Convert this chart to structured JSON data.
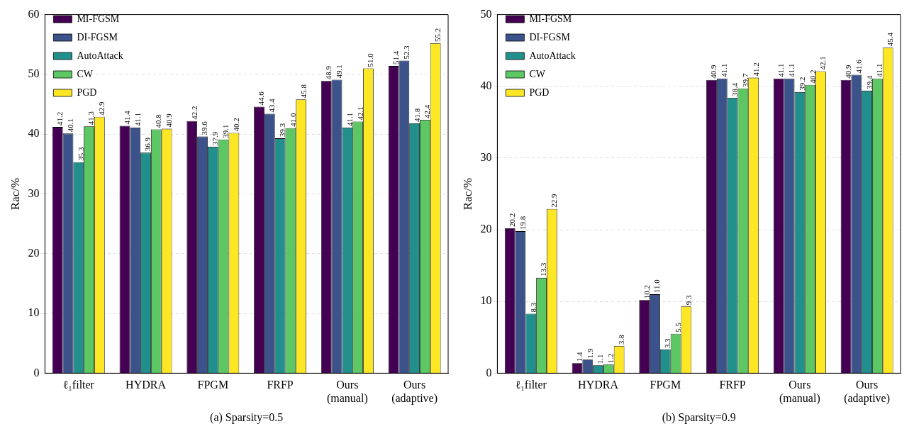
{
  "chart_data": [
    {
      "type": "bar",
      "xlabel": "(a) Sparsity=0.5",
      "ylabel": "Rac/%",
      "categories": [
        "ℓ₁filter",
        "HYDRA",
        "FPGM",
        "FRFP",
        "Ours\n(manual)",
        "Ours\n(adaptive)"
      ],
      "series": [
        {
          "name": "MI-FGSM",
          "color": "#440154",
          "values": [
            41.2,
            41.4,
            42.2,
            44.6,
            48.9,
            51.4
          ],
          "value_labels": [
            "41.2",
            "41.4",
            "42.2",
            "44.6",
            "48.9",
            "51.4"
          ]
        },
        {
          "name": "DI-FGSM",
          "color": "#3b528b",
          "values": [
            40.1,
            41.1,
            39.6,
            43.4,
            49.1,
            52.3
          ],
          "value_labels": [
            "40.1",
            "41.1",
            "39.6",
            "43.4",
            "49.1",
            "52.3"
          ]
        },
        {
          "name": "AutoAttack",
          "color": "#21908d",
          "values": [
            35.3,
            36.9,
            37.9,
            39.3,
            41.1,
            41.8
          ],
          "value_labels": [
            "35.3",
            "36.9",
            "37.9",
            "39.3",
            "41.1",
            "41.8"
          ]
        },
        {
          "name": "CW",
          "color": "#5dc863",
          "values": [
            41.3,
            40.8,
            39.1,
            41.0,
            42.1,
            42.4
          ],
          "value_labels": [
            "41.3",
            "40.8",
            "39.1",
            "41.0",
            "42.1",
            "42.4"
          ]
        },
        {
          "name": "PGD",
          "color": "#fde725",
          "values": [
            42.9,
            40.9,
            40.2,
            45.8,
            51.0,
            55.2
          ],
          "value_labels": [
            "42.9",
            "40.9",
            "40.2",
            "45.8",
            "51.0",
            "55.2"
          ]
        }
      ],
      "ylim": [
        0,
        60
      ],
      "yticks": [
        0,
        10,
        20,
        30,
        40,
        50,
        60
      ],
      "grid": "y",
      "legend": "top left"
    },
    {
      "type": "bar",
      "xlabel": "(b) Sparsity=0.9",
      "ylabel": "Rac/%",
      "categories": [
        "ℓ₁filter",
        "HYDRA",
        "FPGM",
        "FRFP",
        "Ours\n(manual)",
        "Ours\n(adaptive)"
      ],
      "series": [
        {
          "name": "MI-FGSM",
          "color": "#440154",
          "values": [
            20.2,
            1.4,
            10.2,
            40.9,
            41.1,
            40.9
          ],
          "value_labels": [
            "20.2",
            "1.4",
            "10.2",
            "40.9",
            "41.1",
            "40.9"
          ]
        },
        {
          "name": "DI-FGSM",
          "color": "#3b528b",
          "values": [
            19.8,
            1.9,
            11.0,
            41.1,
            41.1,
            41.6
          ],
          "value_labels": [
            "19.8",
            "1.9",
            "11.0",
            "41.1",
            "41.1",
            "41.6"
          ]
        },
        {
          "name": "AutoAttack",
          "color": "#21908d",
          "values": [
            8.3,
            1.1,
            3.3,
            38.4,
            39.2,
            39.4
          ],
          "value_labels": [
            "8.3",
            "1.1",
            "3.3",
            "38.4",
            "39.2",
            "39.4"
          ]
        },
        {
          "name": "CW",
          "color": "#5dc863",
          "values": [
            13.3,
            1.2,
            5.5,
            39.7,
            40.2,
            41.1
          ],
          "value_labels": [
            "13.3",
            "1.2",
            "5.5",
            "39.7",
            "40.2",
            "41.1"
          ]
        },
        {
          "name": "PGD",
          "color": "#fde725",
          "values": [
            22.9,
            3.8,
            9.3,
            41.2,
            42.1,
            45.4
          ],
          "value_labels": [
            "22.9",
            "3.8",
            "9.3",
            "41.2",
            "42.1",
            "45.4"
          ]
        }
      ],
      "ylim": [
        0,
        50
      ],
      "yticks": [
        0,
        10,
        20,
        30,
        40,
        50
      ],
      "grid": "y",
      "legend": "top left"
    }
  ]
}
